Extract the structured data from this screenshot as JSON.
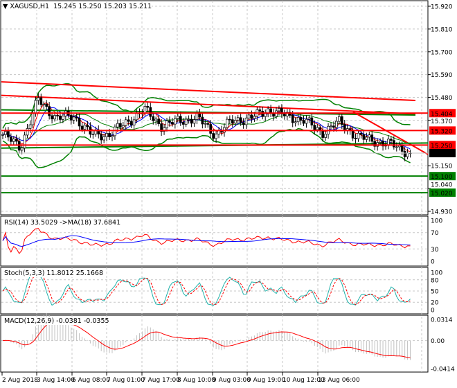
{
  "header": {
    "symbol": "XAGUSD,H1",
    "open": "15.245",
    "high": "15.250",
    "low": "15.203",
    "close": "15.211"
  },
  "indicators": {
    "rsi": "RSI(14) 33.5029  ->MA(18) 37.6841",
    "stoch": "Stoch(5,3,3) 11.8012 25.1668",
    "macd": "MACD(12,26,9) -0.0381 -0.0355"
  },
  "chart_data": [
    {
      "type": "candlestick",
      "title": "XAGUSD,H1",
      "ylim": [
        14.93,
        15.92
      ],
      "y_ticks": [
        "15.920",
        "15.810",
        "15.700",
        "15.590",
        "15.480",
        "15.370",
        "15.150",
        "15.040",
        "14.930"
      ],
      "x_ticks": [
        "2 Aug 2018",
        "3 Aug 14:00",
        "6 Aug 08:00",
        "7 Aug 01:00",
        "7 Aug 17:00",
        "8 Aug 10:00",
        "9 Aug 03:00",
        "9 Aug 19:00",
        "10 Aug 12:00",
        "13 Aug 06:00"
      ],
      "approx_close_path": [
        15.3,
        15.24,
        15.47,
        15.38,
        15.39,
        15.3,
        15.3,
        15.36,
        15.42,
        15.34,
        15.37,
        15.38,
        15.3,
        15.37,
        15.38,
        15.42,
        15.39,
        15.37,
        15.31,
        15.36,
        15.29,
        15.27,
        15.25,
        15.211
      ],
      "levels": [
        {
          "value": "15.404",
          "color": "#ff0000"
        },
        {
          "value": "15.320",
          "color": "#ff0000"
        },
        {
          "value": "15.250",
          "color": "#ff0000"
        },
        {
          "value": "15.100",
          "color": "#008000"
        },
        {
          "value": "15.020",
          "color": "#008000"
        }
      ],
      "last_price": {
        "value": "15.211",
        "color": "#000000"
      },
      "overlays": [
        "Bollinger Bands (green)",
        "moving averages",
        "red trend lines"
      ]
    },
    {
      "type": "line",
      "name": "RSI",
      "ylim": [
        0,
        100
      ],
      "y_ticks": [
        "100",
        "70",
        "30",
        "0"
      ],
      "series_colors": [
        "#ff0000",
        "#0000ff"
      ]
    },
    {
      "type": "line",
      "name": "Stochastic",
      "ylim": [
        0,
        100
      ],
      "y_ticks": [
        "100",
        "80",
        "50",
        "20",
        "0"
      ],
      "series_colors": [
        "#20b2aa",
        "#ff0000"
      ]
    },
    {
      "type": "bar+line",
      "name": "MACD",
      "ylim": [
        -0.0414,
        0.0314
      ],
      "y_ticks": [
        "0.0314",
        "0.00",
        "-0.0414"
      ],
      "series_colors": [
        "#c0c0c0",
        "#ff0000"
      ]
    }
  ]
}
